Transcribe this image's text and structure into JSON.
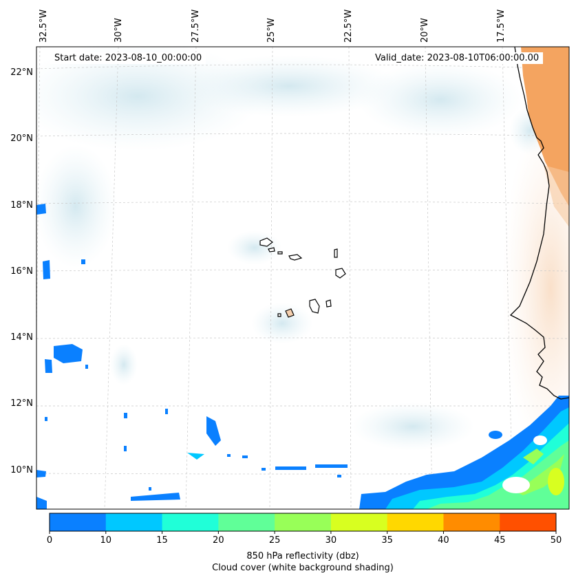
{
  "map": {
    "start_date": "Start date: 2023-08-10_00:00:00",
    "valid_date": "Valid_date: 2023-08-10T06:00:00.00",
    "lon_labels": [
      "32.5°W",
      "30°W",
      "27.5°W",
      "25°W",
      "22.5°W",
      "20°W",
      "17.5°W"
    ],
    "lat_labels": [
      "22°N",
      "20°N",
      "18°N",
      "16°N",
      "14°N",
      "12°N",
      "10°N"
    ],
    "colors": {
      "reflectivity_base": "#0a80ff",
      "cloud": "#d9ecf2",
      "land_orange": "#f4a460",
      "coast": "#000000",
      "grid": "#c8c8c8"
    }
  },
  "colorbar": {
    "ticks": [
      "0",
      "10",
      "15",
      "20",
      "25",
      "30",
      "35",
      "40",
      "45",
      "50"
    ],
    "colors": [
      "#0a80ff",
      "#00c8ff",
      "#20ffd8",
      "#60ff98",
      "#98ff58",
      "#d8ff20",
      "#ffd800",
      "#ff8c00",
      "#ff5000"
    ],
    "label_line1": "850 hPa reflectivity (dbz)",
    "label_line2": "Cloud cover (white background shading)"
  }
}
